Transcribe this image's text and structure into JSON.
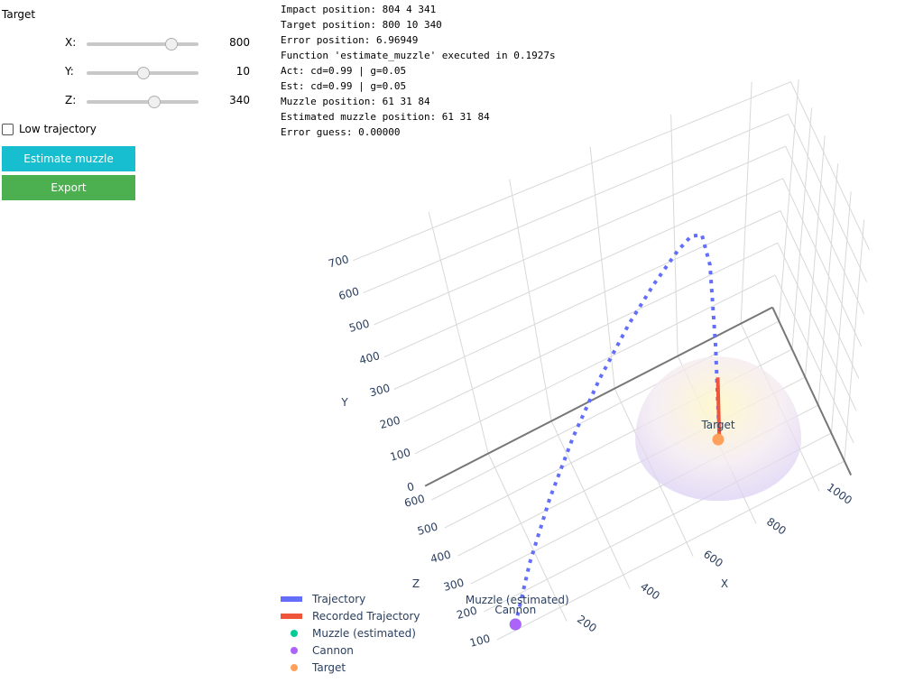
{
  "controls": {
    "title": "Target",
    "sliders": [
      {
        "label": "X:",
        "value": 800,
        "min": 0,
        "max": 1050
      },
      {
        "label": "Y:",
        "value": 10,
        "min": -1000,
        "max": 1000
      },
      {
        "label": "Z:",
        "value": 340,
        "min": 0,
        "max": 560
      }
    ],
    "checkbox": "Low trajectory",
    "buttons": [
      "Estimate muzzle",
      "Export"
    ]
  },
  "output": [
    "Impact position: 804 4 341",
    "Target position: 800 10 340",
    "Error position: 6.96949",
    "Function 'estimate_muzzle' executed in 0.1927s",
    "Act: cd=0.99 | g=0.05",
    "Est: cd=0.99 | g=0.05",
    "Muzzle position: 61 31 84",
    "Estimated muzzle position: 61 31 84",
    "Error guess: 0.00000"
  ],
  "chart_data": {
    "type": "scatter3d",
    "xlabel": "X",
    "ylabel": "Y",
    "zlabel": "Z",
    "xlim": [
      0,
      1100
    ],
    "ylim": [
      0,
      750
    ],
    "zlim": [
      50,
      650
    ],
    "xticks": [
      200,
      400,
      600,
      800,
      1000
    ],
    "yticks": [
      0,
      100,
      200,
      300,
      400,
      500,
      600,
      700
    ],
    "zticks": [
      100,
      200,
      300,
      400,
      500,
      600
    ],
    "grid": true,
    "series": [
      {
        "name": "Trajectory",
        "mode": "line",
        "dash": true,
        "color": "#636efa",
        "x": [
          61,
          150,
          250,
          350,
          450,
          550,
          630,
          700,
          740,
          770,
          790,
          800,
          804
        ],
        "y": [
          31,
          150,
          270,
          380,
          480,
          570,
          630,
          675,
          690,
          670,
          560,
          300,
          4
        ],
        "z": [
          84,
          115,
          149,
          184,
          219,
          253,
          281,
          305,
          319,
          329,
          336,
          340,
          341
        ]
      },
      {
        "name": "Recorded Trajectory",
        "mode": "line",
        "dash": false,
        "color": "#ef553b",
        "x": [
          804,
          804
        ],
        "y": [
          4,
          200
        ],
        "z": [
          341,
          341
        ]
      },
      {
        "name": "Muzzle (estimated)",
        "mode": "marker",
        "color": "#00cc96",
        "x": [
          61
        ],
        "y": [
          31
        ],
        "z": [
          84
        ]
      },
      {
        "name": "Cannon",
        "mode": "marker",
        "color": "#ab63fa",
        "x": [
          61
        ],
        "y": [
          31
        ],
        "z": [
          84
        ]
      },
      {
        "name": "Target",
        "mode": "marker",
        "color": "#ffa15a",
        "x": [
          800
        ],
        "y": [
          10
        ],
        "z": [
          340
        ]
      }
    ]
  }
}
